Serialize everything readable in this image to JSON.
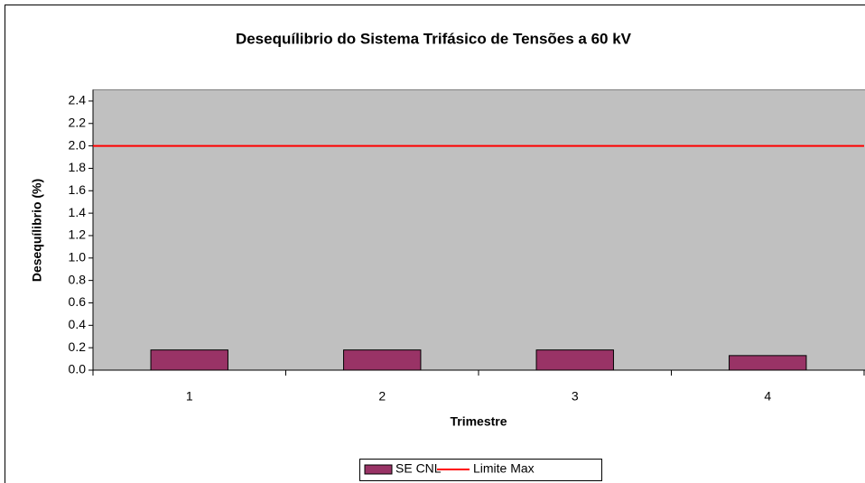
{
  "chart_data": {
    "type": "bar",
    "title": "Desequílibrio do Sistema Trifásico de Tensões a 60 kV",
    "x_label": "Trimestre",
    "y_label": "Desequílibrio (%)",
    "categories": [
      "1",
      "2",
      "3",
      "4"
    ],
    "series": [
      {
        "name": "SE CNL",
        "color": "#993366",
        "values": [
          0.18,
          0.18,
          0.18,
          0.13
        ]
      },
      {
        "name": "Limite Max",
        "type": "line",
        "color": "#ff0000",
        "values": [
          2,
          2,
          2,
          2
        ]
      }
    ],
    "ylim": [
      0,
      2.5
    ],
    "yticks": [
      {
        "value": 0,
        "label": "0.0"
      },
      {
        "value": 0.2,
        "label": "0.2"
      },
      {
        "value": 0.4,
        "label": "0.4"
      },
      {
        "value": 0.6,
        "label": "0.6"
      },
      {
        "value": 0.8,
        "label": "0.8"
      },
      {
        "value": 1.0,
        "label": "1.0"
      },
      {
        "value": 1.2,
        "label": "1.2"
      },
      {
        "value": 1.4,
        "label": "1.4"
      },
      {
        "value": 1.6,
        "label": "1.6"
      },
      {
        "value": 1.8,
        "label": "1.8"
      },
      {
        "value": 2.0,
        "label": "2.0"
      },
      {
        "value": 2.2,
        "label": "2.2"
      },
      {
        "value": 2.4,
        "label": "2.4"
      }
    ],
    "plot_background": "#c0c0c0",
    "legend": "bottom"
  }
}
